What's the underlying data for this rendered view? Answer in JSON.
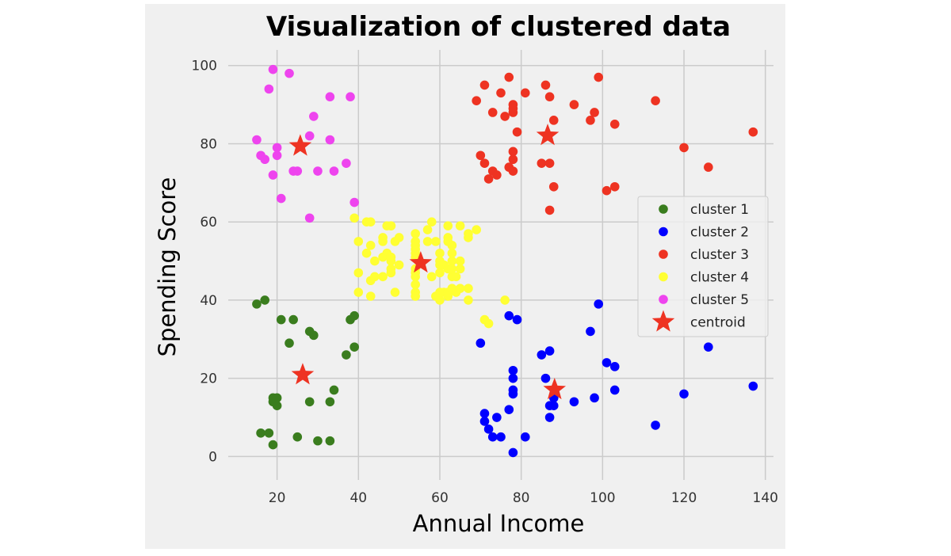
{
  "chart_data": {
    "type": "scatter",
    "title": "Visualization of clustered data",
    "xlabel": "Annual Income",
    "ylabel": "Spending Score",
    "xlim": [
      8,
      142
    ],
    "ylim": [
      -6,
      104
    ],
    "xticks": [
      20,
      40,
      60,
      80,
      100,
      120,
      140
    ],
    "yticks": [
      0,
      20,
      40,
      60,
      80,
      100
    ],
    "grid": true,
    "legend_placement": "right",
    "series": [
      {
        "name": "cluster 1",
        "color": "#3a7d1e",
        "marker": "circle",
        "points": [
          [
            15,
            39
          ],
          [
            16,
            6
          ],
          [
            17,
            40
          ],
          [
            18,
            6
          ],
          [
            19,
            3
          ],
          [
            19,
            14
          ],
          [
            19,
            15
          ],
          [
            20,
            13
          ],
          [
            20,
            15
          ],
          [
            21,
            35
          ],
          [
            23,
            29
          ],
          [
            24,
            35
          ],
          [
            25,
            5
          ],
          [
            28,
            32
          ],
          [
            28,
            14
          ],
          [
            29,
            31
          ],
          [
            30,
            4
          ],
          [
            33,
            4
          ],
          [
            33,
            14
          ],
          [
            34,
            17
          ],
          [
            37,
            26
          ],
          [
            38,
            35
          ],
          [
            39,
            36
          ],
          [
            39,
            28
          ]
        ]
      },
      {
        "name": "cluster 2",
        "color": "#0000ff",
        "marker": "circle",
        "points": [
          [
            70,
            29
          ],
          [
            71,
            11
          ],
          [
            71,
            9
          ],
          [
            72,
            7
          ],
          [
            73,
            5
          ],
          [
            74,
            10
          ],
          [
            75,
            5
          ],
          [
            77,
            12
          ],
          [
            77,
            36
          ],
          [
            78,
            22
          ],
          [
            78,
            20
          ],
          [
            78,
            16
          ],
          [
            78,
            17
          ],
          [
            78,
            1
          ],
          [
            79,
            35
          ],
          [
            81,
            5
          ],
          [
            85,
            26
          ],
          [
            86,
            20
          ],
          [
            87,
            27
          ],
          [
            87,
            10
          ],
          [
            87,
            13
          ],
          [
            88,
            13
          ],
          [
            88,
            15
          ],
          [
            93,
            14
          ],
          [
            97,
            32
          ],
          [
            98,
            15
          ],
          [
            99,
            39
          ],
          [
            101,
            24
          ],
          [
            103,
            23
          ],
          [
            103,
            17
          ],
          [
            113,
            8
          ],
          [
            120,
            16
          ],
          [
            126,
            28
          ],
          [
            137,
            18
          ]
        ]
      },
      {
        "name": "cluster 3",
        "color": "#ee3322",
        "marker": "circle",
        "points": [
          [
            69,
            91
          ],
          [
            70,
            77
          ],
          [
            71,
            75
          ],
          [
            71,
            95
          ],
          [
            72,
            71
          ],
          [
            73,
            88
          ],
          [
            73,
            73
          ],
          [
            74,
            72
          ],
          [
            75,
            93
          ],
          [
            76,
            87
          ],
          [
            77,
            97
          ],
          [
            77,
            74
          ],
          [
            78,
            90
          ],
          [
            78,
            88
          ],
          [
            78,
            89
          ],
          [
            78,
            76
          ],
          [
            78,
            78
          ],
          [
            78,
            73
          ],
          [
            79,
            83
          ],
          [
            81,
            93
          ],
          [
            85,
            75
          ],
          [
            86,
            95
          ],
          [
            87,
            75
          ],
          [
            87,
            92
          ],
          [
            87,
            63
          ],
          [
            88,
            86
          ],
          [
            88,
            69
          ],
          [
            93,
            90
          ],
          [
            97,
            86
          ],
          [
            98,
            88
          ],
          [
            99,
            97
          ],
          [
            101,
            68
          ],
          [
            103,
            85
          ],
          [
            103,
            69
          ],
          [
            113,
            91
          ],
          [
            120,
            79
          ],
          [
            126,
            74
          ],
          [
            137,
            83
          ]
        ]
      },
      {
        "name": "cluster 4",
        "color": "#ffff33",
        "marker": "circle",
        "points": [
          [
            39,
            61
          ],
          [
            40,
            55
          ],
          [
            40,
            47
          ],
          [
            40,
            42
          ],
          [
            42,
            52
          ],
          [
            42,
            60
          ],
          [
            43,
            60
          ],
          [
            43,
            54
          ],
          [
            43,
            45
          ],
          [
            43,
            41
          ],
          [
            44,
            50
          ],
          [
            44,
            46
          ],
          [
            46,
            51
          ],
          [
            46,
            46
          ],
          [
            46,
            56
          ],
          [
            46,
            55
          ],
          [
            47,
            52
          ],
          [
            47,
            59
          ],
          [
            48,
            51
          ],
          [
            48,
            59
          ],
          [
            48,
            50
          ],
          [
            48,
            48
          ],
          [
            48,
            59
          ],
          [
            48,
            47
          ],
          [
            49,
            55
          ],
          [
            49,
            42
          ],
          [
            50,
            49
          ],
          [
            50,
            56
          ],
          [
            54,
            47
          ],
          [
            54,
            54
          ],
          [
            54,
            53
          ],
          [
            54,
            48
          ],
          [
            54,
            52
          ],
          [
            54,
            42
          ],
          [
            54,
            51
          ],
          [
            54,
            55
          ],
          [
            54,
            41
          ],
          [
            54,
            44
          ],
          [
            54,
            57
          ],
          [
            54,
            46
          ],
          [
            57,
            58
          ],
          [
            57,
            55
          ],
          [
            58,
            60
          ],
          [
            58,
            46
          ],
          [
            59,
            55
          ],
          [
            59,
            41
          ],
          [
            60,
            49
          ],
          [
            60,
            40
          ],
          [
            60,
            42
          ],
          [
            60,
            52
          ],
          [
            60,
            47
          ],
          [
            60,
            50
          ],
          [
            61,
            42
          ],
          [
            61,
            49
          ],
          [
            62,
            41
          ],
          [
            62,
            48
          ],
          [
            62,
            59
          ],
          [
            62,
            55
          ],
          [
            62,
            56
          ],
          [
            62,
            42
          ],
          [
            63,
            50
          ],
          [
            63,
            46
          ],
          [
            63,
            43
          ],
          [
            63,
            48
          ],
          [
            63,
            52
          ],
          [
            63,
            54
          ],
          [
            64,
            42
          ],
          [
            64,
            46
          ],
          [
            65,
            48
          ],
          [
            65,
            50
          ],
          [
            65,
            43
          ],
          [
            65,
            59
          ],
          [
            67,
            43
          ],
          [
            67,
            57
          ],
          [
            67,
            56
          ],
          [
            67,
            40
          ],
          [
            69,
            58
          ],
          [
            71,
            35
          ],
          [
            72,
            34
          ],
          [
            76,
            40
          ]
        ]
      },
      {
        "name": "cluster 5",
        "color": "#ee44ee",
        "marker": "circle",
        "points": [
          [
            15,
            81
          ],
          [
            16,
            77
          ],
          [
            17,
            76
          ],
          [
            18,
            94
          ],
          [
            19,
            72
          ],
          [
            19,
            99
          ],
          [
            20,
            77
          ],
          [
            20,
            79
          ],
          [
            21,
            66
          ],
          [
            23,
            98
          ],
          [
            24,
            73
          ],
          [
            25,
            73
          ],
          [
            28,
            82
          ],
          [
            28,
            61
          ],
          [
            29,
            87
          ],
          [
            30,
            73
          ],
          [
            33,
            92
          ],
          [
            33,
            81
          ],
          [
            34,
            73
          ],
          [
            37,
            75
          ],
          [
            38,
            92
          ],
          [
            39,
            65
          ]
        ]
      },
      {
        "name": "centroid",
        "color": "#ee3322",
        "marker": "star",
        "points": [
          [
            25.7,
            79.4
          ],
          [
            26.3,
            20.9
          ],
          [
            55.3,
            49.5
          ],
          [
            86.5,
            82.1
          ],
          [
            88.2,
            17.1
          ]
        ]
      }
    ]
  }
}
